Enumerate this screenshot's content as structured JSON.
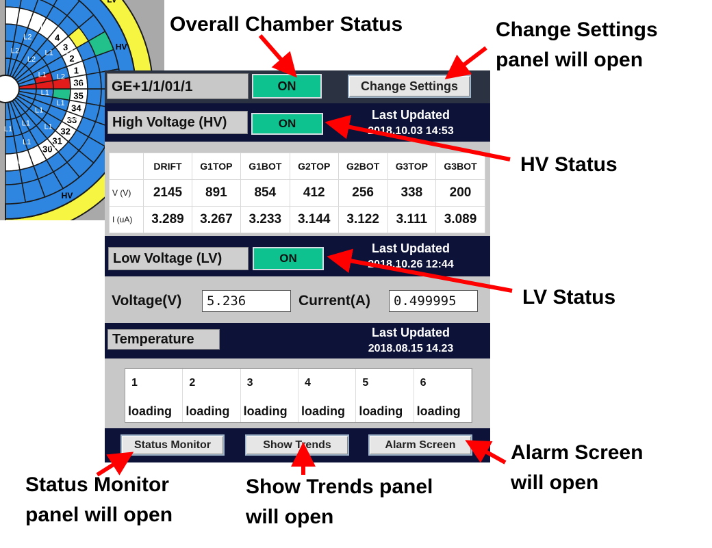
{
  "wheel": {
    "labels": [
      "L2",
      "L2",
      "L2",
      "L2",
      "L1",
      "L2",
      "L1",
      "L2",
      "L1",
      "L1",
      "L1",
      "L1",
      "L1",
      "L1",
      "L1",
      "L1",
      "L1",
      "L1",
      "L1",
      "HV",
      "HV",
      "LV"
    ],
    "numbers": [
      "4",
      "3",
      "2",
      "1",
      "36",
      "35",
      "34",
      "33",
      "32",
      "31",
      "30"
    ],
    "colors": {
      "blue": "#2f86e0",
      "red": "#e21b1b",
      "green": "#22c08a",
      "yellow": "#f5f542",
      "dark": "#1a1a1a"
    }
  },
  "panel": {
    "chamber_id": "GE+1/1/01/1",
    "overall_status": "ON",
    "change_settings_label": "Change Settings",
    "hv": {
      "title": "High Voltage (HV)",
      "status": "ON",
      "last_updated_label": "Last Updated",
      "last_updated": "2018.10.03  14:53",
      "columns": [
        "DRIFT",
        "G1TOP",
        "G1BOT",
        "G2TOP",
        "G2BOT",
        "G3TOP",
        "G3BOT"
      ],
      "v_label": "V (V)",
      "i_label": "I (uA)",
      "voltages": [
        "2145",
        "891",
        "854",
        "412",
        "256",
        "338",
        "200"
      ],
      "currents": [
        "3.289",
        "3.267",
        "3.233",
        "3.144",
        "3.122",
        "3.111",
        "3.089"
      ]
    },
    "lv": {
      "title": "Low Voltage (LV)",
      "status": "ON",
      "last_updated_label": "Last Updated",
      "last_updated": "2018.10.26  12:44",
      "voltage_label": "Voltage(V)",
      "voltage_value": "5.236",
      "current_label": "Current(A)",
      "current_value": "0.499995"
    },
    "temperature": {
      "title": "Temperature",
      "last_updated_label": "Last Updated",
      "last_updated": "2018.08.15  14.23",
      "sensors": [
        {
          "id": "1",
          "value": "loading"
        },
        {
          "id": "2",
          "value": "loading"
        },
        {
          "id": "3",
          "value": "loading"
        },
        {
          "id": "4",
          "value": "loading"
        },
        {
          "id": "5",
          "value": "loading"
        },
        {
          "id": "6",
          "value": "loading"
        }
      ]
    },
    "buttons": {
      "status_monitor": "Status Monitor",
      "show_trends": "Show Trends",
      "alarm_screen": "Alarm Screen"
    }
  },
  "annotations": {
    "overall": "Overall Chamber Status",
    "change_settings_l1": "Change Settings",
    "change_settings_l2": "panel will open",
    "hv_status": "HV Status",
    "lv_status": "LV Status",
    "alarm_l1": "Alarm Screen",
    "alarm_l2": "will open",
    "status_monitor_l1": "Status Monitor",
    "status_monitor_l2": "panel will open",
    "trends_l1": "Show Trends panel",
    "trends_l2": "will open",
    "arrow_color": "#ff0000"
  }
}
